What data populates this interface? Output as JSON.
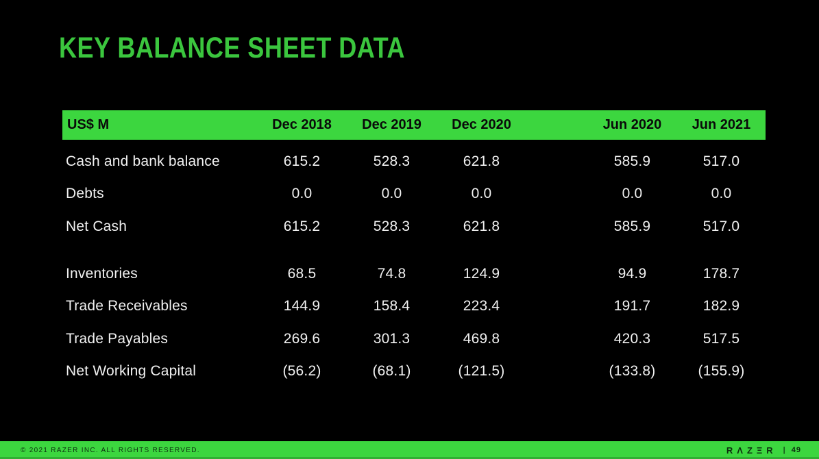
{
  "slide": {
    "title": "KEY BALANCE SHEET DATA"
  },
  "table": {
    "unit_label": "US$ M",
    "columns": [
      "Dec 2018",
      "Dec 2019",
      "Dec 2020",
      "Jun 2020",
      "Jun 2021"
    ],
    "sections": [
      {
        "rows": [
          {
            "label": "Cash and bank balance",
            "values": [
              "615.2",
              "528.3",
              "621.8",
              "585.9",
              "517.0"
            ]
          },
          {
            "label": "Debts",
            "values": [
              "0.0",
              "0.0",
              "0.0",
              "0.0",
              "0.0"
            ]
          },
          {
            "label": "Net Cash",
            "values": [
              "615.2",
              "528.3",
              "621.8",
              "585.9",
              "517.0"
            ]
          }
        ]
      },
      {
        "rows": [
          {
            "label": "Inventories",
            "values": [
              "68.5",
              "74.8",
              "124.9",
              "94.9",
              "178.7"
            ]
          },
          {
            "label": "Trade Receivables",
            "values": [
              "144.9",
              "158.4",
              "223.4",
              "191.7",
              "182.9"
            ]
          },
          {
            "label": "Trade Payables",
            "values": [
              "269.6",
              "301.3",
              "469.8",
              "420.3",
              "517.5"
            ]
          },
          {
            "label": "Net Working Capital",
            "values": [
              "(56.2)",
              "(68.1)",
              "(121.5)",
              "(133.8)",
              "(155.9)"
            ]
          }
        ]
      }
    ]
  },
  "footer": {
    "copyright": "© 2021 RAZER INC. ALL RIGHTS RESERVED.",
    "brand": "RΛZΞR",
    "separator": "|",
    "page_number": "49"
  },
  "colors": {
    "background": "#000000",
    "accent_green": "#3CD63F",
    "title_green": "#3BC63E",
    "header_text": "#0A0A0A",
    "body_text": "#F1F1F1",
    "footer_text": "#0E2F10"
  }
}
